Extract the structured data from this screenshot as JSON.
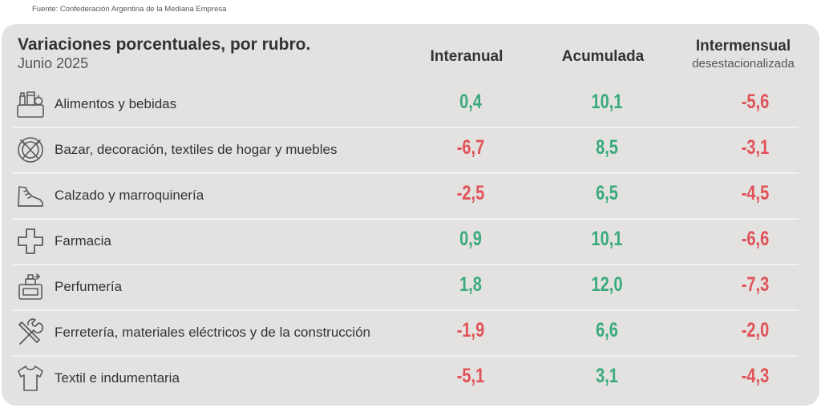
{
  "source": "Fuente: Confederación Argentina de la Mediana Empresa",
  "title": "Variaciones porcentuales, por rubro.",
  "subtitle": "Junio 2025",
  "colors": {
    "positive": "#3aaa7d",
    "negative": "#e05257",
    "text": "#333333",
    "panel": "#e3e2e1"
  },
  "chart_data": {
    "type": "table",
    "title": "Variaciones porcentuales, por rubro.",
    "subtitle": "Junio 2025",
    "columns": [
      {
        "label": "Interanual",
        "sublabel": ""
      },
      {
        "label": "Acumulada",
        "sublabel": ""
      },
      {
        "label": "Intermensual",
        "sublabel": "desestacionalizada"
      }
    ],
    "rows": [
      {
        "category": "Alimentos y bebidas",
        "icon": "groceries-icon",
        "values": [
          "0,4",
          "10,1",
          "-5,6"
        ],
        "numeric": [
          0.4,
          10.1,
          -5.6
        ]
      },
      {
        "category": "Bazar, decoración, textiles de hogar y muebles",
        "icon": "tableware-icon",
        "values": [
          "-6,7",
          "8,5",
          "-3,1"
        ],
        "numeric": [
          -6.7,
          8.5,
          -3.1
        ]
      },
      {
        "category": "Calzado y marroquinería",
        "icon": "sneaker-icon",
        "values": [
          "-2,5",
          "6,5",
          "-4,5"
        ],
        "numeric": [
          -2.5,
          6.5,
          -4.5
        ]
      },
      {
        "category": "Farmacia",
        "icon": "pharmacy-cross-icon",
        "values": [
          "0,9",
          "10,1",
          "-6,6"
        ],
        "numeric": [
          0.9,
          10.1,
          -6.6
        ]
      },
      {
        "category": "Perfumería",
        "icon": "perfume-icon",
        "values": [
          "1,8",
          "12,0",
          "-7,3"
        ],
        "numeric": [
          1.8,
          12.0,
          -7.3
        ]
      },
      {
        "category": "Ferretería, materiales eléctricos y de la construcción",
        "icon": "tools-icon",
        "values": [
          "-1,9",
          "6,6",
          "-2,0"
        ],
        "numeric": [
          -1.9,
          6.6,
          -2.0
        ]
      },
      {
        "category": "Textil e indumentaria",
        "icon": "shirt-icon",
        "values": [
          "-5,1",
          "3,1",
          "-4,3"
        ],
        "numeric": [
          -5.1,
          3.1,
          -4.3
        ]
      }
    ]
  }
}
